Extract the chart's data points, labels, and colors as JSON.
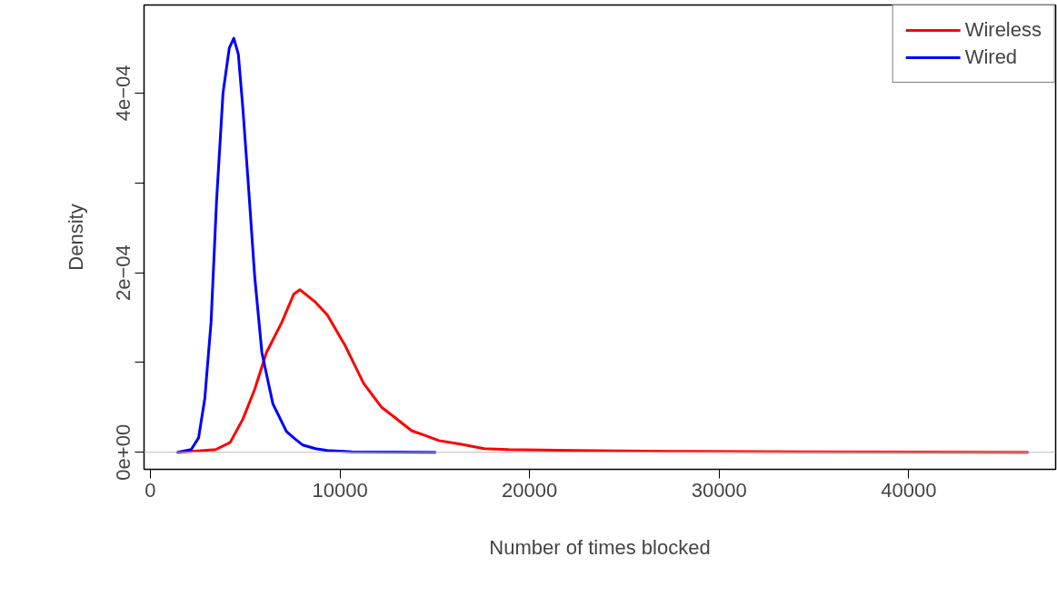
{
  "chart_data": {
    "type": "line",
    "xlabel": "Number of times blocked",
    "ylabel": "Density",
    "series": [
      {
        "name": "Wireless",
        "color": "#ff0000",
        "x": [
          1530,
          3440,
          4210,
          4880,
          5500,
          6120,
          6940,
          7560,
          7890,
          8710,
          9330,
          10290,
          11240,
          12200,
          12820,
          13780,
          14450,
          15220,
          16360,
          17610,
          18900,
          22390,
          27460,
          34450,
          46270
        ],
        "values": [
          0,
          3e-06,
          1.1e-05,
          3.7e-05,
          7e-05,
          0.000111,
          0.000145,
          0.000176,
          0.000181,
          0.000167,
          0.000153,
          0.000118,
          7.7e-05,
          5e-05,
          4e-05,
          2.4e-05,
          1.9e-05,
          1.3e-05,
          9e-06,
          4e-06,
          3e-06,
          2e-06,
          1e-06,
          5e-07,
          0
        ]
      },
      {
        "name": "Wired",
        "color": "#0000ff",
        "x": [
          1440,
          2150,
          2540,
          2870,
          3200,
          3490,
          3830,
          4160,
          4400,
          4640,
          4880,
          5170,
          5500,
          5880,
          6460,
          7180,
          7560,
          8040,
          8710,
          9330,
          10620,
          15020
        ],
        "values": [
          0,
          3e-06,
          1.6e-05,
          6e-05,
          0.000145,
          0.00028,
          0.0004,
          0.00045,
          0.000461,
          0.000443,
          0.000382,
          0.000297,
          0.000196,
          0.000111,
          5.4e-05,
          2.3e-05,
          1.6e-05,
          8e-06,
          4e-06,
          2e-06,
          5e-07,
          0
        ]
      }
    ],
    "xlim": [
      -335,
      47750
    ],
    "ylim": [
      -1.9e-05,
      0.000498
    ],
    "xticks": [
      0,
      10000,
      20000,
      30000,
      40000
    ],
    "yticks": [
      {
        "value": 0,
        "label": "0e+00"
      },
      {
        "value": 0.0001,
        "label": null
      },
      {
        "value": 0.0002,
        "label": "2e−04"
      },
      {
        "value": 0.0003,
        "label": null
      },
      {
        "value": 0.0004,
        "label": "4e−04"
      }
    ],
    "ref_lines": [
      {
        "axis": "y",
        "value": 0,
        "color": "#bebebe"
      }
    ],
    "legend": "top right",
    "line_style": "solid",
    "marker": "none"
  }
}
